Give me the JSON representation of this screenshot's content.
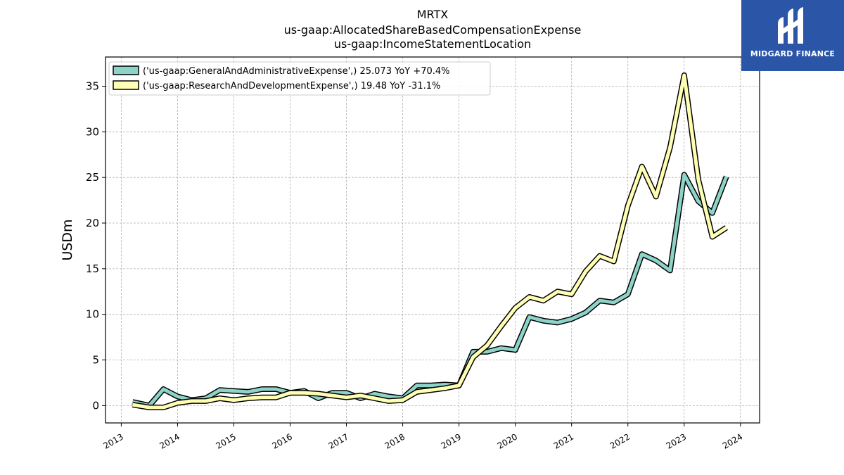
{
  "title_lines": [
    "MRTX",
    "us-gaap:AllocatedShareBasedCompensationExpense",
    "us-gaap:IncomeStatementLocation"
  ],
  "logo": {
    "text": "MIDGARD FINANCE",
    "icon": "midgard-logo-icon",
    "bg_color": "#2b56a8"
  },
  "chart_data": {
    "type": "line",
    "ylabel": "USDm",
    "xlabel": "",
    "xlim": [
      2012.72,
      2024.34
    ],
    "ylim": [
      -1.9,
      38.2
    ],
    "yticks": [
      0,
      5,
      10,
      15,
      20,
      25,
      30,
      35
    ],
    "ytick_labels": [
      "0",
      "5",
      "10",
      "15",
      "20",
      "25",
      "30",
      "35"
    ],
    "xticks": [
      2013,
      2014,
      2015,
      2016,
      2017,
      2018,
      2019,
      2020,
      2021,
      2022,
      2023,
      2024
    ],
    "xtick_labels": [
      "2013",
      "2014",
      "2015",
      "2016",
      "2017",
      "2018",
      "2019",
      "2020",
      "2021",
      "2022",
      "2023",
      "2024"
    ],
    "grid": true,
    "legend_position": "top-left",
    "series": [
      {
        "name": "('us-gaap:GeneralAndAdministrativeExpense',) 25.073 YoY +70.4%",
        "color": "#8dd3c7",
        "x": [
          2013.2,
          2013.5,
          2013.75,
          2014.0,
          2014.25,
          2014.5,
          2014.75,
          2015.0,
          2015.25,
          2015.5,
          2015.75,
          2016.0,
          2016.25,
          2016.5,
          2016.75,
          2017.0,
          2017.25,
          2017.5,
          2017.75,
          2018.0,
          2018.25,
          2018.5,
          2018.75,
          2019.0,
          2019.25,
          2019.5,
          2019.75,
          2020.0,
          2020.25,
          2020.5,
          2020.75,
          2021.0,
          2021.25,
          2021.5,
          2021.75,
          2022.0,
          2022.25,
          2022.5,
          2022.75,
          2023.0,
          2023.25,
          2023.5,
          2023.75
        ],
        "values": [
          0.4,
          0.0,
          1.8,
          1.0,
          0.6,
          0.8,
          1.7,
          1.6,
          1.5,
          1.8,
          1.8,
          1.4,
          1.6,
          0.8,
          1.4,
          1.4,
          0.8,
          1.3,
          1.0,
          0.8,
          2.2,
          2.2,
          2.3,
          2.2,
          5.9,
          5.9,
          6.3,
          6.1,
          9.7,
          9.3,
          9.1,
          9.5,
          10.2,
          11.5,
          11.3,
          12.2,
          16.6,
          15.9,
          14.8,
          25.3,
          22.4,
          21.1,
          25.1
        ]
      },
      {
        "name": "('us-gaap:ResearchAndDevelopmentExpense',) 19.48 YoY -31.1%",
        "color": "#ffffb3",
        "x": [
          2013.2,
          2013.5,
          2013.75,
          2014.0,
          2014.25,
          2014.5,
          2014.75,
          2015.0,
          2015.25,
          2015.5,
          2015.75,
          2016.0,
          2016.25,
          2016.5,
          2016.75,
          2017.0,
          2017.25,
          2017.5,
          2017.75,
          2018.0,
          2018.25,
          2018.5,
          2018.75,
          2019.0,
          2019.25,
          2019.5,
          2019.75,
          2020.0,
          2020.25,
          2020.5,
          2020.75,
          2021.0,
          2021.25,
          2021.5,
          2021.75,
          2022.0,
          2022.25,
          2022.5,
          2022.75,
          2023.0,
          2023.25,
          2023.5,
          2023.75
        ],
        "values": [
          0.1,
          -0.2,
          -0.2,
          0.3,
          0.5,
          0.5,
          0.8,
          0.6,
          0.8,
          0.9,
          0.9,
          1.4,
          1.4,
          1.3,
          1.1,
          0.9,
          1.1,
          0.8,
          0.5,
          0.6,
          1.5,
          1.7,
          1.9,
          2.2,
          5.3,
          6.6,
          8.7,
          10.7,
          11.9,
          11.5,
          12.5,
          12.2,
          14.7,
          16.4,
          15.8,
          21.9,
          26.2,
          22.9,
          28.3,
          36.2,
          24.8,
          18.5,
          19.5
        ]
      }
    ]
  }
}
